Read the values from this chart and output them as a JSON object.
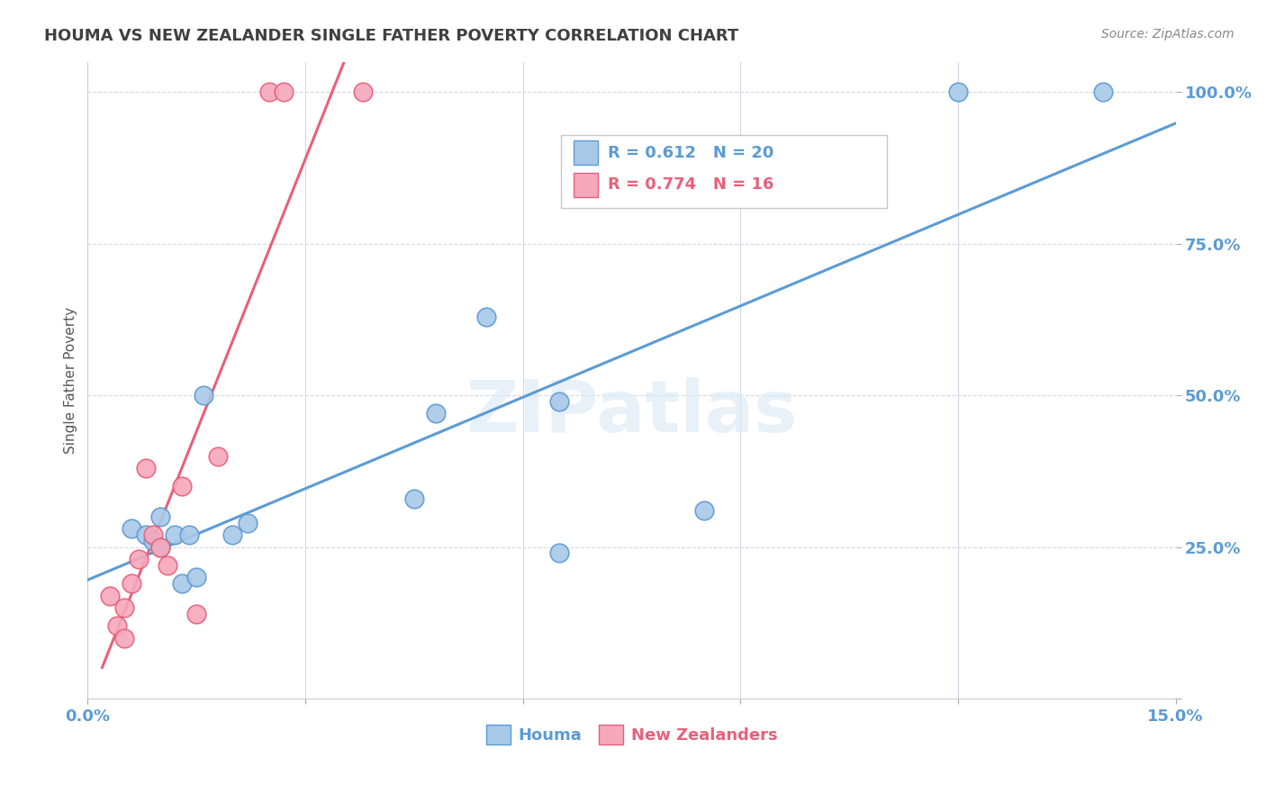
{
  "title": "HOUMA VS NEW ZEALANDER SINGLE FATHER POVERTY CORRELATION CHART",
  "source": "Source: ZipAtlas.com",
  "ylabel": "Single Father Poverty",
  "houma_r": 0.612,
  "houma_n": 20,
  "nz_r": 0.774,
  "nz_n": 16,
  "houma_color": "#a8c8e8",
  "nz_color": "#f5a8bc",
  "line_blue": "#5b9bd5",
  "line_pink": "#e8607a",
  "xlim": [
    0.0,
    0.15
  ],
  "ylim": [
    0.0,
    1.05
  ],
  "houma_x": [
    0.006,
    0.008,
    0.009,
    0.01,
    0.01,
    0.012,
    0.013,
    0.014,
    0.015,
    0.016,
    0.02,
    0.022,
    0.045,
    0.048,
    0.055,
    0.065,
    0.065,
    0.085,
    0.12,
    0.14
  ],
  "houma_y": [
    0.28,
    0.27,
    0.26,
    0.3,
    0.25,
    0.27,
    0.19,
    0.27,
    0.2,
    0.5,
    0.27,
    0.29,
    0.33,
    0.47,
    0.63,
    0.49,
    0.24,
    0.31,
    1.0,
    1.0
  ],
  "nz_x": [
    0.003,
    0.004,
    0.005,
    0.005,
    0.006,
    0.007,
    0.008,
    0.009,
    0.01,
    0.011,
    0.013,
    0.015,
    0.018,
    0.025,
    0.027,
    0.038
  ],
  "nz_y": [
    0.17,
    0.12,
    0.15,
    0.1,
    0.19,
    0.23,
    0.38,
    0.27,
    0.25,
    0.22,
    0.35,
    0.14,
    0.4,
    1.0,
    1.0,
    1.0
  ],
  "watermark": "ZIPatlas",
  "background_color": "#ffffff",
  "grid_color": "#d0d8e8",
  "tick_label_color": "#5b9bd5",
  "title_color": "#404040",
  "source_color": "#888888"
}
